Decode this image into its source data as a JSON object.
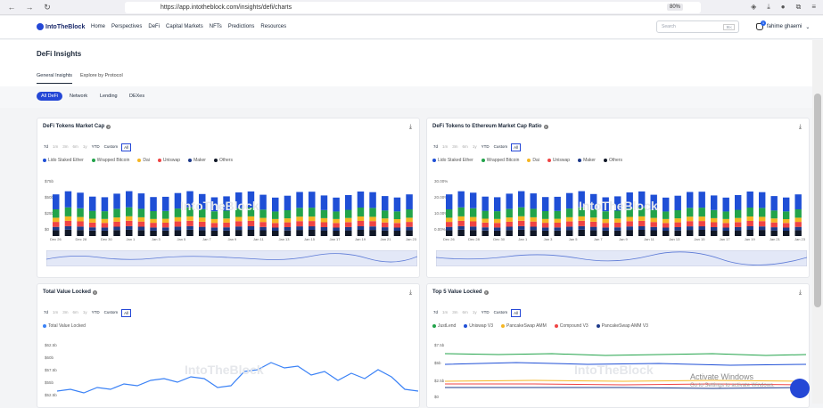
{
  "browser": {
    "url": "https://app.intotheblock.com/insights/defi/charts",
    "zoom": "80%"
  },
  "nav": {
    "logo": "IntoTheBlock",
    "items": [
      "Home",
      "Perspectives",
      "DeFi",
      "Capital Markets",
      "NFTs",
      "Predictions",
      "Resources"
    ],
    "search_placeholder": "Search",
    "search_key": "⌘K",
    "user": "fahime ghaemi",
    "badge": "1"
  },
  "page": {
    "title": "DeFi Insights",
    "tabs": [
      "General Insights",
      "Explore by Protocol"
    ],
    "filters": [
      "All DeFi",
      "Network",
      "Lending",
      "DEXes"
    ]
  },
  "ranges": [
    "7d",
    "1m",
    "3m",
    "6m",
    "1y",
    "YTD",
    "Custom",
    "All"
  ],
  "colors": {
    "lido": "#1f4fd6",
    "wbtc": "#22a34a",
    "dai": "#f5b623",
    "uni": "#ef4444",
    "maker": "#1e3a8a",
    "others": "#111827",
    "tvl": "#3b82f6"
  },
  "cards": {
    "c1": {
      "title": "DeFi Tokens Market Cap",
      "legend": [
        "Lido Staked Ether",
        "Wrapped Bitcoin",
        "Dai",
        "Uniswap",
        "Maker",
        "Others"
      ],
      "yticks": [
        "$75b",
        "$50b",
        "$25b",
        "$0"
      ],
      "xticks": [
        "Dec 26",
        "Dec 28",
        "Dec 30",
        "Jan 1",
        "Jan 3",
        "Jan 5",
        "Jan 7",
        "Jan 9",
        "Jan 11",
        "Jan 13",
        "Jan 15",
        "Jan 17",
        "Jan 19",
        "Jan 21",
        "Jan 23"
      ]
    },
    "c2": {
      "title": "DeFi Tokens to Ethereum Market Cap Ratio",
      "legend": [
        "Lido Staked Ether",
        "Wrapped Bitcoin",
        "Dai",
        "Uniswap",
        "Maker",
        "Others"
      ],
      "yticks": [
        "30.00%",
        "20.00%",
        "10.00%",
        "0.00%"
      ],
      "xticks": [
        "Dec 26",
        "Dec 28",
        "Dec 30",
        "Jan 1",
        "Jan 3",
        "Jan 5",
        "Jan 7",
        "Jan 9",
        "Jan 11",
        "Jan 13",
        "Jan 15",
        "Jan 17",
        "Jan 19",
        "Jan 21",
        "Jan 23"
      ]
    },
    "c3": {
      "title": "Total Value Locked",
      "legend": [
        "Total Value Locked"
      ],
      "yticks": [
        "$62.5b",
        "$60b",
        "$57.5b",
        "$55b",
        "$52.5b"
      ]
    },
    "c4": {
      "title": "Top 5 Value Locked",
      "legend": [
        "JustLend",
        "Uniswap V3",
        "PancakeSwap AMM",
        "Compound V3",
        "PancakeSwap AMM V3"
      ],
      "yticks": [
        "$7.5b",
        "$5b",
        "$2.5b",
        "$0"
      ]
    }
  },
  "watermark": "IntoTheBlock",
  "windows": {
    "title": "Activate Windows",
    "sub": "Go to Settings to activate Windows."
  }
}
